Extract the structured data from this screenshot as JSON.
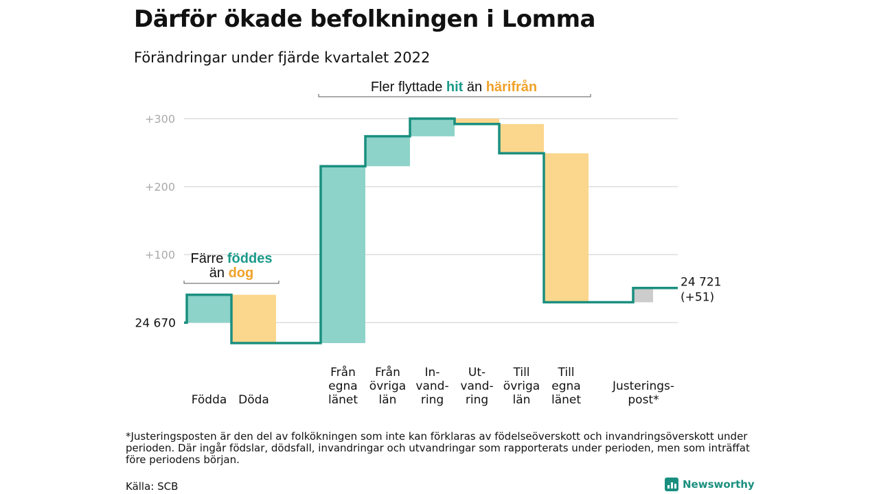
{
  "title": "Därför ökade befolkningen i Lomma",
  "subtitle": "Förändringar under fjärde kvartalet 2022",
  "footnote": "*Justeringsposten är den del av folkökningen som inte kan förklaras av födelseöverskott och invandringsöverskott under perioden. Där ingår födslar, dödsfall, invandringar och utvandringar som rapporterats under perioden, men som inträffat före periodens början.",
  "source": "Källa: SCB",
  "brand": "Newsworthy",
  "colors": {
    "increase": "#8dd3c9",
    "decrease": "#fbd68d",
    "adjustment": "#cccccc",
    "line": "#1a8f7f",
    "grid": "#dddddd",
    "tick_text": "#aaaaaa",
    "accent_teal": "#1a9a8a",
    "accent_orange": "#f0a12a"
  },
  "chart_data": {
    "type": "waterfall",
    "start_value": 24670,
    "start_label": "24 670",
    "end_label": "24 721",
    "end_change_label": "(+51)",
    "y_ticks": [
      {
        "value": 300,
        "label": "+300"
      },
      {
        "value": 200,
        "label": "+200"
      },
      {
        "value": 100,
        "label": "+100"
      }
    ],
    "ylim": [
      -35,
      315
    ],
    "steps": [
      {
        "label_lines": [
          "Födda"
        ],
        "change": 41,
        "kind": "increase"
      },
      {
        "label_lines": [
          "Döda"
        ],
        "change": -71,
        "kind": "decrease"
      },
      {
        "label_lines": [
          ""
        ],
        "change": 0,
        "kind": "none"
      },
      {
        "label_lines": [
          "Från",
          "egna",
          "länet"
        ],
        "change": 260,
        "kind": "increase"
      },
      {
        "label_lines": [
          "Från",
          "övriga",
          "län"
        ],
        "change": 44,
        "kind": "increase"
      },
      {
        "label_lines": [
          "In-",
          "vand-",
          "ring"
        ],
        "change": 26,
        "kind": "increase"
      },
      {
        "label_lines": [
          "Ut-",
          "vand-",
          "ring"
        ],
        "change": -8,
        "kind": "decrease"
      },
      {
        "label_lines": [
          "Till",
          "övriga",
          "län"
        ],
        "change": -43,
        "kind": "decrease"
      },
      {
        "label_lines": [
          "Till",
          "egna",
          "länet"
        ],
        "change": -219,
        "kind": "decrease"
      },
      {
        "label_lines": [
          ""
        ],
        "change": 0,
        "kind": "none"
      },
      {
        "label_lines": [
          "Justerings-",
          "post*"
        ],
        "change": 21,
        "kind": "adjustment"
      }
    ],
    "annotations": [
      {
        "group": "births",
        "line1": [
          {
            "text": "Färre ",
            "style": "normal"
          },
          {
            "text": "föddes",
            "style": "teal"
          }
        ],
        "line2": [
          {
            "text": "än ",
            "style": "normal"
          },
          {
            "text": "dog",
            "style": "orange"
          }
        ]
      },
      {
        "group": "migration",
        "line1": [
          {
            "text": "Fler flyttade ",
            "style": "normal"
          },
          {
            "text": "hit",
            "style": "teal"
          },
          {
            "text": " än ",
            "style": "normal"
          },
          {
            "text": "härifrån",
            "style": "orange"
          }
        ]
      }
    ]
  }
}
